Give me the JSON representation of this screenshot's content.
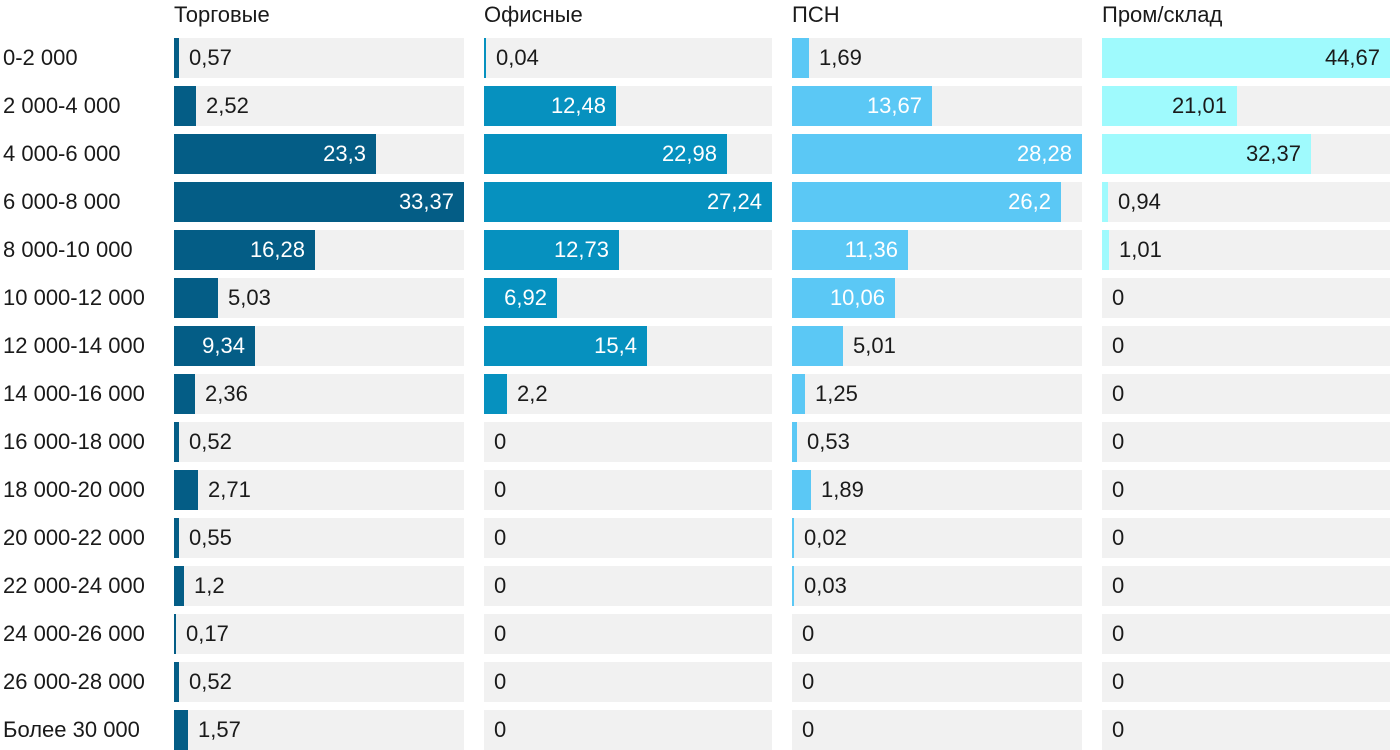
{
  "chart_data": {
    "type": "bar",
    "orientation": "horizontal",
    "layout": "small-multiples",
    "categories": [
      "0-2 000",
      "2 000-4 000",
      "4 000-6 000",
      "6 000-8 000",
      "8 000-10 000",
      "10 000-12 000",
      "12 000-14 000",
      "14 000-16 000",
      "16 000-18 000",
      "18 000-20 000",
      "20 000-22 000",
      "22 000-24 000",
      "24 000-26 000",
      "26 000-28 000",
      "Более 30 000"
    ],
    "series": [
      {
        "name": "Торговые",
        "color": "#045d86",
        "xlim": [
          0,
          33.37
        ],
        "values": [
          0.57,
          2.52,
          23.3,
          33.37,
          16.28,
          5.03,
          9.34,
          2.36,
          0.52,
          2.71,
          0.55,
          1.2,
          0.17,
          0.52,
          1.57
        ],
        "labels": [
          "0,57",
          "2,52",
          "23,3",
          "33,37",
          "16,28",
          "5,03",
          "9,34",
          "2,36",
          "0,52",
          "2,71",
          "0,55",
          "1,2",
          "0,17",
          "0,52",
          "1,57"
        ]
      },
      {
        "name": "Офисные",
        "color": "#0691bf",
        "xlim": [
          0,
          27.24
        ],
        "values": [
          0.04,
          12.48,
          22.98,
          27.24,
          12.73,
          6.92,
          15.4,
          2.2,
          0,
          0,
          0,
          0,
          0,
          0,
          0
        ],
        "labels": [
          "0,04",
          "12,48",
          "22,98",
          "27,24",
          "12,73",
          "6,92",
          "15,4",
          "2,2",
          "0",
          "0",
          "0",
          "0",
          "0",
          "0",
          "0"
        ]
      },
      {
        "name": "ПСН",
        "color": "#5bc8f5",
        "xlim": [
          0,
          28.28
        ],
        "values": [
          1.69,
          13.67,
          28.28,
          26.2,
          11.36,
          10.06,
          5.01,
          1.25,
          0.53,
          1.89,
          0.02,
          0.03,
          0,
          0,
          0
        ],
        "labels": [
          "1,69",
          "13,67",
          "28,28",
          "26,2",
          "11,36",
          "10,06",
          "5,01",
          "1,25",
          "0,53",
          "1,89",
          "0,02",
          "0,03",
          "0",
          "0",
          "0"
        ]
      },
      {
        "name": "Пром/склад",
        "color": "#9ffafd",
        "xlim": [
          0,
          44.67
        ],
        "values": [
          44.67,
          21.01,
          32.37,
          0.94,
          1.01,
          0,
          0,
          0,
          0,
          0,
          0,
          0,
          0,
          0,
          0
        ],
        "labels": [
          "44,67",
          "21,01",
          "32,37",
          "0,94",
          "1,01",
          "0",
          "0",
          "0",
          "0",
          "0",
          "0",
          "0",
          "0",
          "0",
          "0"
        ]
      }
    ],
    "title": "",
    "xlabel": "",
    "ylabel": "",
    "grid": false,
    "legend": "none"
  }
}
